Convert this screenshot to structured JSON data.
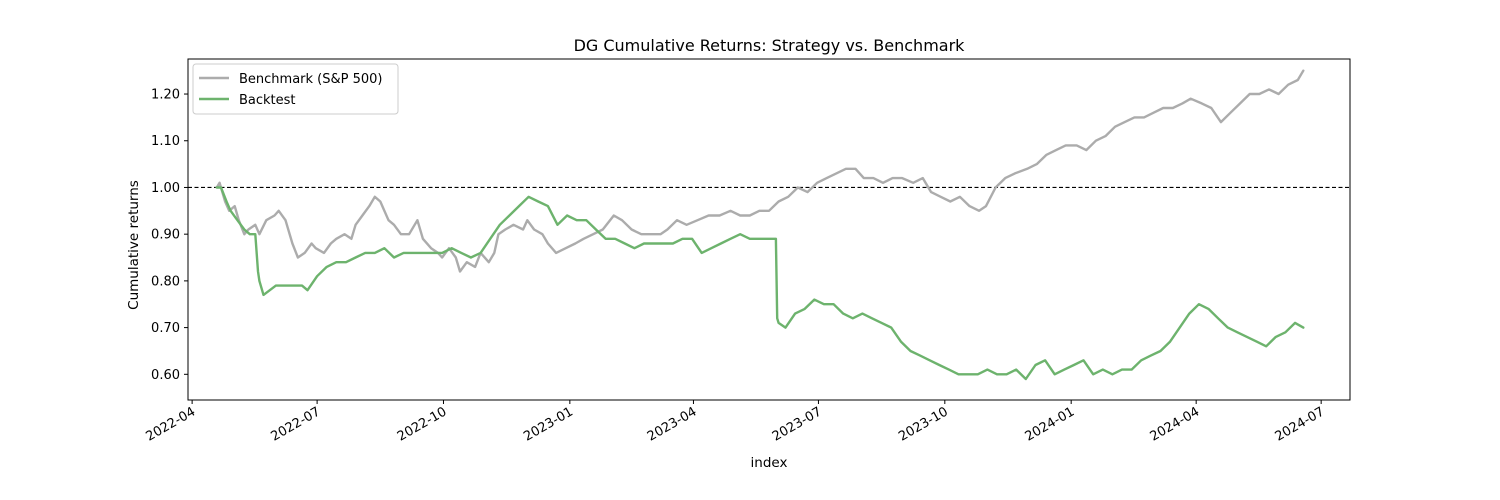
{
  "chart_data": {
    "type": "line",
    "title": "DG Cumulative Returns: Strategy vs. Benchmark",
    "xlabel": "index",
    "ylabel": "Cumulative returns",
    "x_range": [
      "2022-03-29",
      "2024-07-22"
    ],
    "ylim": [
      0.545,
      1.275
    ],
    "x_ticks": [
      "2022-04-01",
      "2022-07-01",
      "2022-10-01",
      "2023-01-01",
      "2023-04-01",
      "2023-07-01",
      "2023-10-01",
      "2024-01-01",
      "2024-04-01",
      "2024-07-01"
    ],
    "x_tick_labels": [
      "2022-04",
      "2022-07",
      "2022-10",
      "2023-01",
      "2023-04",
      "2023-07",
      "2023-10",
      "2024-01",
      "2024-04",
      "2024-07"
    ],
    "y_ticks": [
      0.6,
      0.7,
      0.8,
      0.9,
      1.0,
      1.1,
      1.2
    ],
    "y_tick_labels": [
      "0.60",
      "0.70",
      "0.80",
      "0.90",
      "1.00",
      "1.10",
      "1.20"
    ],
    "reference_line": {
      "y": 1.0,
      "style": "dashed",
      "color": "#000000"
    },
    "legend": {
      "placement": "upper-left"
    },
    "grid": false,
    "series": [
      {
        "name": "Benchmark (S&P 500)",
        "color": "#acacac",
        "x": [
          "2022-04-19",
          "2022-04-21",
          "2022-04-25",
          "2022-04-28",
          "2022-05-02",
          "2022-05-05",
          "2022-05-09",
          "2022-05-12",
          "2022-05-17",
          "2022-05-20",
          "2022-05-25",
          "2022-05-31",
          "2022-06-03",
          "2022-06-08",
          "2022-06-13",
          "2022-06-17",
          "2022-06-22",
          "2022-06-27",
          "2022-06-30",
          "2022-07-06",
          "2022-07-11",
          "2022-07-15",
          "2022-07-21",
          "2022-07-26",
          "2022-07-29",
          "2022-08-03",
          "2022-08-08",
          "2022-08-12",
          "2022-08-16",
          "2022-08-22",
          "2022-08-26",
          "2022-08-31",
          "2022-09-06",
          "2022-09-12",
          "2022-09-16",
          "2022-09-22",
          "2022-09-27",
          "2022-09-30",
          "2022-10-05",
          "2022-10-10",
          "2022-10-13",
          "2022-10-18",
          "2022-10-24",
          "2022-10-28",
          "2022-11-03",
          "2022-11-07",
          "2022-11-10",
          "2022-11-15",
          "2022-11-21",
          "2022-11-28",
          "2022-12-01",
          "2022-12-06",
          "2022-12-12",
          "2022-12-16",
          "2022-12-22",
          "2022-12-29",
          "2023-01-05",
          "2023-01-11",
          "2023-01-18",
          "2023-01-25",
          "2023-02-02",
          "2023-02-08",
          "2023-02-15",
          "2023-02-22",
          "2023-03-01",
          "2023-03-08",
          "2023-03-13",
          "2023-03-20",
          "2023-03-27",
          "2023-04-04",
          "2023-04-12",
          "2023-04-20",
          "2023-04-28",
          "2023-05-05",
          "2023-05-12",
          "2023-05-19",
          "2023-05-26",
          "2023-06-02",
          "2023-06-09",
          "2023-06-16",
          "2023-06-23",
          "2023-06-30",
          "2023-07-07",
          "2023-07-14",
          "2023-07-21",
          "2023-07-28",
          "2023-08-03",
          "2023-08-10",
          "2023-08-17",
          "2023-08-24",
          "2023-08-31",
          "2023-09-08",
          "2023-09-15",
          "2023-09-21",
          "2023-09-28",
          "2023-10-05",
          "2023-10-12",
          "2023-10-19",
          "2023-10-26",
          "2023-10-31",
          "2023-11-07",
          "2023-11-14",
          "2023-11-21",
          "2023-11-30",
          "2023-12-07",
          "2023-12-14",
          "2023-12-21",
          "2023-12-28",
          "2024-01-05",
          "2024-01-12",
          "2024-01-19",
          "2024-01-26",
          "2024-02-02",
          "2024-02-09",
          "2024-02-16",
          "2024-02-23",
          "2024-03-01",
          "2024-03-08",
          "2024-03-15",
          "2024-03-22",
          "2024-03-28",
          "2024-04-05",
          "2024-04-12",
          "2024-04-19",
          "2024-04-26",
          "2024-05-03",
          "2024-05-10",
          "2024-05-17",
          "2024-05-24",
          "2024-05-31",
          "2024-06-07",
          "2024-06-14",
          "2024-06-18"
        ],
        "values": [
          1.0,
          1.01,
          0.97,
          0.95,
          0.96,
          0.93,
          0.9,
          0.91,
          0.92,
          0.9,
          0.93,
          0.94,
          0.95,
          0.93,
          0.88,
          0.85,
          0.86,
          0.88,
          0.87,
          0.86,
          0.88,
          0.89,
          0.9,
          0.89,
          0.92,
          0.94,
          0.96,
          0.98,
          0.97,
          0.93,
          0.92,
          0.9,
          0.9,
          0.93,
          0.89,
          0.87,
          0.86,
          0.85,
          0.87,
          0.85,
          0.82,
          0.84,
          0.83,
          0.86,
          0.84,
          0.86,
          0.9,
          0.91,
          0.92,
          0.91,
          0.93,
          0.91,
          0.9,
          0.88,
          0.86,
          0.87,
          0.88,
          0.89,
          0.9,
          0.91,
          0.94,
          0.93,
          0.91,
          0.9,
          0.9,
          0.9,
          0.91,
          0.93,
          0.92,
          0.93,
          0.94,
          0.94,
          0.95,
          0.94,
          0.94,
          0.95,
          0.95,
          0.97,
          0.98,
          1.0,
          0.99,
          1.01,
          1.02,
          1.03,
          1.04,
          1.04,
          1.02,
          1.02,
          1.01,
          1.02,
          1.02,
          1.01,
          1.02,
          0.99,
          0.98,
          0.97,
          0.98,
          0.96,
          0.95,
          0.96,
          1.0,
          1.02,
          1.03,
          1.04,
          1.05,
          1.07,
          1.08,
          1.09,
          1.09,
          1.08,
          1.1,
          1.11,
          1.13,
          1.14,
          1.15,
          1.15,
          1.16,
          1.17,
          1.17,
          1.18,
          1.19,
          1.18,
          1.17,
          1.14,
          1.16,
          1.18,
          1.2,
          1.2,
          1.21,
          1.2,
          1.22,
          1.23,
          1.25
        ]
      },
      {
        "name": "Backtest",
        "color": "#6db36d",
        "x": [
          "2022-04-19",
          "2022-04-22",
          "2022-04-26",
          "2022-04-29",
          "2022-05-04",
          "2022-05-09",
          "2022-05-13",
          "2022-05-17",
          "2022-05-19",
          "2022-05-20",
          "2022-05-23",
          "2022-06-01",
          "2022-06-10",
          "2022-06-20",
          "2022-06-24",
          "2022-07-01",
          "2022-07-08",
          "2022-07-15",
          "2022-07-22",
          "2022-07-29",
          "2022-08-05",
          "2022-08-12",
          "2022-08-19",
          "2022-08-26",
          "2022-09-02",
          "2022-09-09",
          "2022-09-16",
          "2022-09-23",
          "2022-09-30",
          "2022-10-07",
          "2022-10-14",
          "2022-10-21",
          "2022-10-28",
          "2022-11-04",
          "2022-11-11",
          "2022-11-18",
          "2022-11-25",
          "2022-12-02",
          "2022-12-09",
          "2022-12-16",
          "2022-12-23",
          "2022-12-30",
          "2023-01-06",
          "2023-01-13",
          "2023-01-20",
          "2023-01-27",
          "2023-02-03",
          "2023-02-10",
          "2023-02-17",
          "2023-02-24",
          "2023-03-03",
          "2023-03-10",
          "2023-03-17",
          "2023-03-24",
          "2023-03-31",
          "2023-04-07",
          "2023-04-14",
          "2023-04-21",
          "2023-04-28",
          "2023-05-05",
          "2023-05-12",
          "2023-05-19",
          "2023-05-26",
          "2023-05-31",
          "2023-06-01",
          "2023-06-02",
          "2023-06-07",
          "2023-06-14",
          "2023-06-21",
          "2023-06-28",
          "2023-07-05",
          "2023-07-12",
          "2023-07-19",
          "2023-07-26",
          "2023-08-02",
          "2023-08-09",
          "2023-08-16",
          "2023-08-23",
          "2023-08-30",
          "2023-09-06",
          "2023-09-13",
          "2023-09-20",
          "2023-09-27",
          "2023-10-04",
          "2023-10-11",
          "2023-10-18",
          "2023-10-25",
          "2023-11-01",
          "2023-11-08",
          "2023-11-15",
          "2023-11-22",
          "2023-11-29",
          "2023-12-06",
          "2023-12-13",
          "2023-12-20",
          "2023-12-27",
          "2024-01-03",
          "2024-01-10",
          "2024-01-17",
          "2024-01-24",
          "2024-01-31",
          "2024-02-07",
          "2024-02-14",
          "2024-02-21",
          "2024-02-28",
          "2024-03-06",
          "2024-03-13",
          "2024-03-20",
          "2024-03-27",
          "2024-04-03",
          "2024-04-10",
          "2024-04-17",
          "2024-04-24",
          "2024-05-01",
          "2024-05-08",
          "2024-05-15",
          "2024-05-22",
          "2024-05-29",
          "2024-06-05",
          "2024-06-12",
          "2024-06-18"
        ],
        "values": [
          1.0,
          1.0,
          0.97,
          0.95,
          0.93,
          0.91,
          0.9,
          0.9,
          0.82,
          0.8,
          0.77,
          0.79,
          0.79,
          0.79,
          0.78,
          0.81,
          0.83,
          0.84,
          0.84,
          0.85,
          0.86,
          0.86,
          0.87,
          0.85,
          0.86,
          0.86,
          0.86,
          0.86,
          0.86,
          0.87,
          0.86,
          0.85,
          0.86,
          0.89,
          0.92,
          0.94,
          0.96,
          0.98,
          0.97,
          0.96,
          0.92,
          0.94,
          0.93,
          0.93,
          0.91,
          0.89,
          0.89,
          0.88,
          0.87,
          0.88,
          0.88,
          0.88,
          0.88,
          0.89,
          0.89,
          0.86,
          0.87,
          0.88,
          0.89,
          0.9,
          0.89,
          0.89,
          0.89,
          0.89,
          0.72,
          0.71,
          0.7,
          0.73,
          0.74,
          0.76,
          0.75,
          0.75,
          0.73,
          0.72,
          0.73,
          0.72,
          0.71,
          0.7,
          0.67,
          0.65,
          0.64,
          0.63,
          0.62,
          0.61,
          0.6,
          0.6,
          0.6,
          0.61,
          0.6,
          0.6,
          0.61,
          0.59,
          0.62,
          0.63,
          0.6,
          0.61,
          0.62,
          0.63,
          0.6,
          0.61,
          0.6,
          0.61,
          0.61,
          0.63,
          0.64,
          0.65,
          0.67,
          0.7,
          0.73,
          0.75,
          0.74,
          0.72,
          0.7,
          0.69,
          0.68,
          0.67,
          0.66,
          0.68,
          0.69,
          0.71,
          0.7
        ]
      }
    ]
  }
}
